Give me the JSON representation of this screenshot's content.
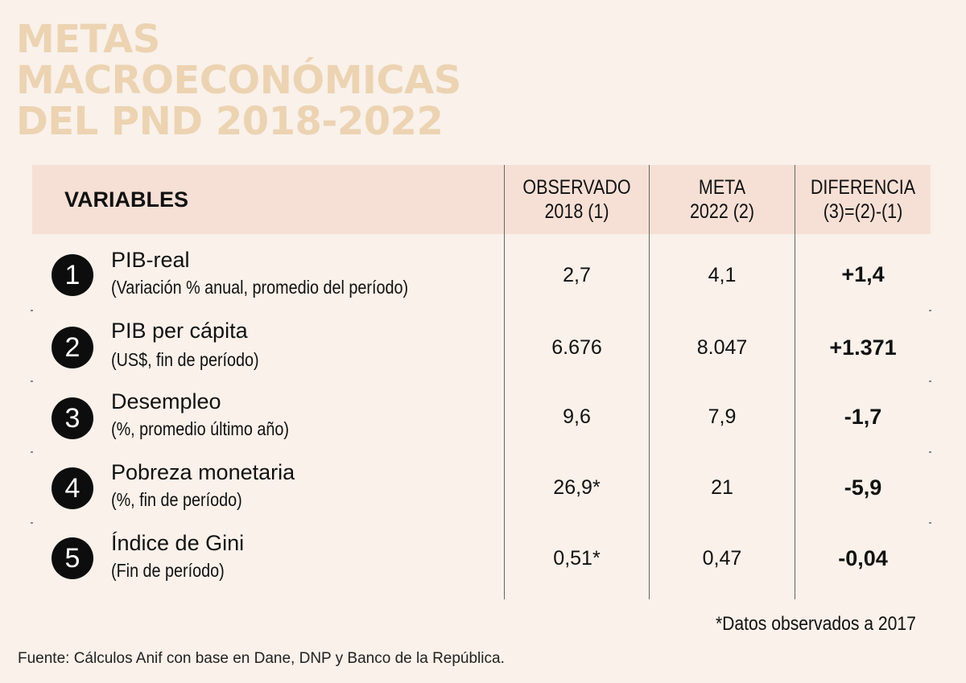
{
  "chart_data": {
    "type": "table",
    "title_lines": [
      "METAS",
      "MACROECONÓMICAS",
      "DEL PND 2018-2022"
    ],
    "columns": {
      "variables": "VARIABLES",
      "observed": [
        "OBSERVADO",
        "2018 (1)"
      ],
      "target": [
        "META",
        "2022 (2)"
      ],
      "difference": [
        "DIFERENCIA",
        "(3)=(2)-(1)"
      ]
    },
    "rows": [
      {
        "num": "1",
        "name": "PIB-real",
        "desc": "(Variación % anual, promedio del período)",
        "observed": "2,7",
        "target": "4,1",
        "difference": "+1,4"
      },
      {
        "num": "2",
        "name": "PIB per cápita",
        "desc": "(US$, fin de período)",
        "observed": "6.676",
        "target": "8.047",
        "difference": "+1.371"
      },
      {
        "num": "3",
        "name": "Desempleo",
        "desc": "(%, promedio último año)",
        "observed": "9,6",
        "target": "7,9",
        "difference": "-1,7"
      },
      {
        "num": "4",
        "name": "Pobreza monetaria",
        "desc": "(%, fin de período)",
        "observed": "26,9*",
        "target": "21",
        "difference": "-5,9"
      },
      {
        "num": "5",
        "name": "Índice de Gini",
        "desc": "(Fin de período)",
        "observed": "0,51*",
        "target": "0,47",
        "difference": "-0,04"
      }
    ],
    "note": "*Datos observados a 2017",
    "source": "Fuente: Cálculos Anif con base en Dane, DNP y Banco de la República."
  },
  "colors": {
    "background": "#f9f1ea",
    "title": "#ecd3b2",
    "header_band": "#f6e0d5",
    "badge": "#0d0d0d"
  }
}
